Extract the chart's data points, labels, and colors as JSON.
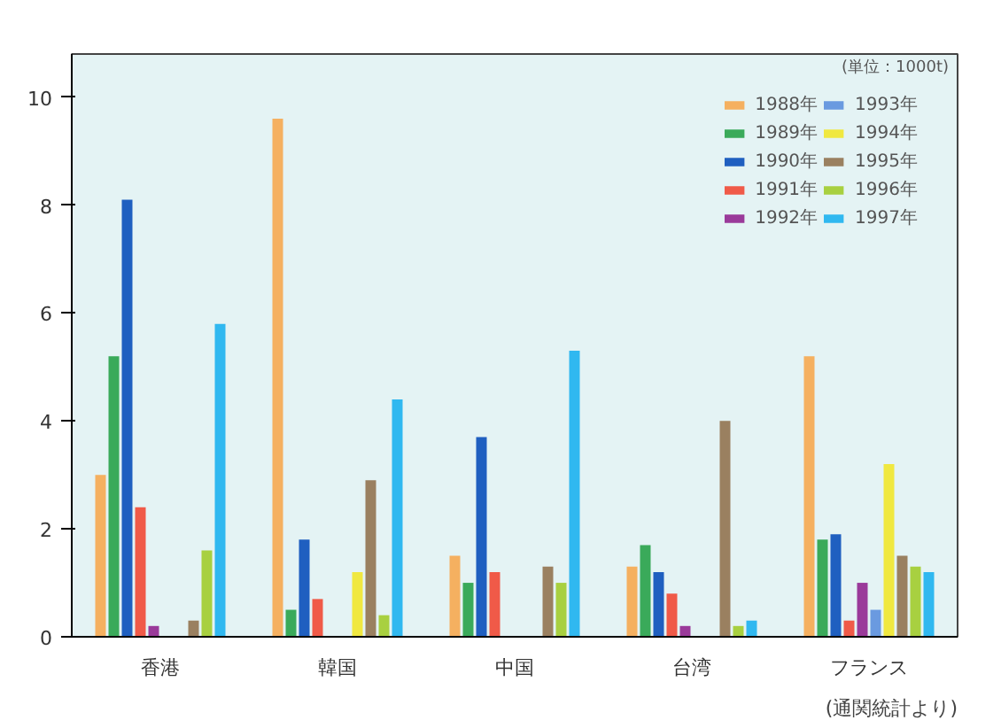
{
  "chart_data": {
    "type": "bar",
    "categories": [
      "香港",
      "韓国",
      "中国",
      "台湾",
      "フランス"
    ],
    "series": [
      {
        "name": "1988年",
        "color": "#f5b060",
        "values": [
          3.0,
          9.6,
          1.5,
          1.3,
          5.2
        ]
      },
      {
        "name": "1989年",
        "color": "#3aaa5a",
        "values": [
          5.2,
          0.5,
          1.0,
          1.7,
          1.8
        ]
      },
      {
        "name": "1990年",
        "color": "#1f5fc0",
        "values": [
          8.1,
          1.8,
          3.7,
          1.2,
          1.9
        ]
      },
      {
        "name": "1991年",
        "color": "#f05a48",
        "values": [
          2.4,
          0.7,
          1.2,
          0.8,
          0.3
        ]
      },
      {
        "name": "1992年",
        "color": "#9a3a9a",
        "values": [
          0.2,
          null,
          null,
          0.2,
          1.0
        ]
      },
      {
        "name": "1993年",
        "color": "#6a9ae0",
        "values": [
          null,
          null,
          null,
          null,
          0.5
        ]
      },
      {
        "name": "1994年",
        "color": "#f0e840",
        "values": [
          null,
          1.2,
          null,
          null,
          3.2
        ]
      },
      {
        "name": "1995年",
        "color": "#9a8060",
        "values": [
          0.3,
          2.9,
          1.3,
          4.0,
          1.5
        ]
      },
      {
        "name": "1996年",
        "color": "#a8d040",
        "values": [
          1.6,
          0.4,
          1.0,
          0.2,
          1.3
        ]
      },
      {
        "name": "1997年",
        "color": "#30b8f0",
        "values": [
          5.8,
          4.4,
          5.3,
          0.3,
          1.2
        ]
      }
    ],
    "ylim": [
      0,
      10.8
    ],
    "yticks": [
      0,
      2,
      4,
      6,
      8,
      10
    ],
    "grid": false,
    "legend": "top right",
    "annotations": [
      "(単位：1000t)",
      "(通関統計より)"
    ]
  }
}
